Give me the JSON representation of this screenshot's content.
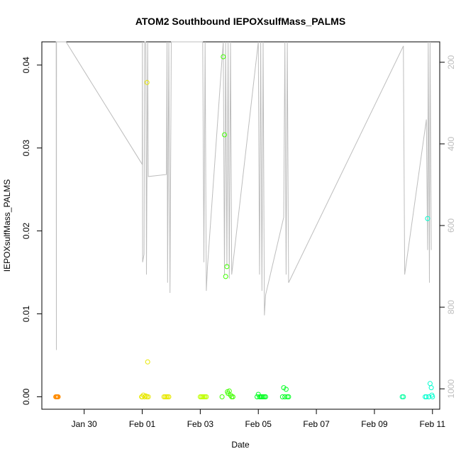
{
  "chart_data": {
    "type": "scatter",
    "title": "ATOM2 Southbound IEPOXsulfMass_PALMS",
    "xlabel": "Date",
    "ylabel": "IEPOXsulfMass_PALMS",
    "x_axis_type": "date",
    "xlim": [
      "2017-01-28T13:00",
      "2017-02-11T06:00"
    ],
    "ylim": [
      -0.0015,
      0.0428
    ],
    "x_ticks": [
      {
        "date": "2017-01-30",
        "label": "Jan 30"
      },
      {
        "date": "2017-02-01",
        "label": "Feb 01"
      },
      {
        "date": "2017-02-03",
        "label": "Feb 03"
      },
      {
        "date": "2017-02-05",
        "label": "Feb 05"
      },
      {
        "date": "2017-02-07",
        "label": "Feb 07"
      },
      {
        "date": "2017-02-09",
        "label": "Feb 09"
      },
      {
        "date": "2017-02-11",
        "label": "Feb 11"
      }
    ],
    "y_ticks": [
      {
        "value": 0.0,
        "label": "0.00"
      },
      {
        "value": 0.01,
        "label": "0.01"
      },
      {
        "value": 0.02,
        "label": "0.02"
      },
      {
        "value": 0.03,
        "label": "0.03"
      },
      {
        "value": 0.04,
        "label": "0.04"
      }
    ],
    "secondary_axis": {
      "position": "right",
      "reversed": true,
      "ylim": [
        1050,
        150
      ],
      "ticks": [
        {
          "value": 200,
          "label": "200"
        },
        {
          "value": 400,
          "label": "400"
        },
        {
          "value": 600,
          "label": "600"
        },
        {
          "value": 800,
          "label": "800"
        },
        {
          "value": 1000,
          "label": "1000"
        }
      ],
      "line_color": "#bdbdbd",
      "line": [
        [
          "2017-01-29T00:30",
          150
        ],
        [
          "2017-01-29T00:50",
          150
        ],
        [
          "2017-01-29T01:00",
          905
        ],
        [
          "2017-01-29T01:10",
          150
        ],
        [
          "2017-01-29T09:00",
          150
        ],
        [
          "2017-02-01T00:00",
          450
        ],
        [
          "2017-02-01T00:10",
          150
        ],
        [
          "2017-02-01T00:20",
          690
        ],
        [
          "2017-02-01T01:30",
          670
        ],
        [
          "2017-02-01T02:00",
          150
        ],
        [
          "2017-02-01T03:00",
          150
        ],
        [
          "2017-02-01T03:30",
          720
        ],
        [
          "2017-02-01T04:30",
          150
        ],
        [
          "2017-02-01T05:00",
          480
        ],
        [
          "2017-02-01T20:00",
          475
        ],
        [
          "2017-02-01T20:30",
          150
        ],
        [
          "2017-02-01T21:00",
          740
        ],
        [
          "2017-02-01T22:00",
          150
        ],
        [
          "2017-02-01T23:00",
          765
        ],
        [
          "2017-02-02T00:00",
          150
        ],
        [
          "2017-02-03T02:00",
          150
        ],
        [
          "2017-02-03T03:00",
          690
        ],
        [
          "2017-02-03T04:00",
          150
        ],
        [
          "2017-02-03T05:00",
          760
        ],
        [
          "2017-02-03T06:00",
          700
        ],
        [
          "2017-02-03T18:00",
          190
        ],
        [
          "2017-02-03T19:00",
          150
        ],
        [
          "2017-02-03T20:00",
          720
        ],
        [
          "2017-02-03T21:00",
          150
        ],
        [
          "2017-02-03T22:00",
          700
        ],
        [
          "2017-02-03T23:00",
          150
        ],
        [
          "2017-02-04T00:00",
          730
        ],
        [
          "2017-02-04T01:00",
          150
        ],
        [
          "2017-02-04T02:00",
          720
        ],
        [
          "2017-02-05T00:00",
          150
        ],
        [
          "2017-02-05T01:00",
          720
        ],
        [
          "2017-02-05T02:00",
          150
        ],
        [
          "2017-02-05T03:00",
          760
        ],
        [
          "2017-02-05T04:00",
          150
        ],
        [
          "2017-02-05T05:00",
          820
        ],
        [
          "2017-02-05T06:00",
          770
        ],
        [
          "2017-02-05T21:00",
          580
        ],
        [
          "2017-02-05T22:00",
          150
        ],
        [
          "2017-02-05T23:00",
          720
        ],
        [
          "2017-02-06T00:00",
          150
        ],
        [
          "2017-02-06T01:00",
          740
        ],
        [
          "2017-02-10T00:00",
          160
        ],
        [
          "2017-02-10T00:00",
          180
        ],
        [
          "2017-02-10T01:00",
          720
        ],
        [
          "2017-02-10T19:00",
          340
        ],
        [
          "2017-02-10T20:00",
          660
        ],
        [
          "2017-02-10T20:30",
          150
        ],
        [
          "2017-02-10T21:30",
          740
        ],
        [
          "2017-02-10T22:00",
          150
        ],
        [
          "2017-02-10T23:00",
          660
        ]
      ]
    },
    "point_colors": {
      "orange": "#ff8c00",
      "yellow": "#e8e800",
      "yellow_green": "#bfff00",
      "green": "#40ff00",
      "bright_green": "#00ff20",
      "cyan_green": "#00ffa0",
      "cyan": "#00ffd0"
    },
    "series": [
      {
        "color": "orange",
        "points": [
          [
            "2017-01-29T00:30",
            0.0
          ],
          [
            "2017-01-29T01:00",
            0.0
          ],
          [
            "2017-01-29T01:30",
            0.0
          ],
          [
            "2017-01-29T02:00",
            0.0
          ],
          [
            "2017-01-29T02:30",
            0.0
          ]
        ]
      },
      {
        "color": "yellow",
        "points": [
          [
            "2017-01-31T23:30",
            0.0
          ],
          [
            "2017-02-01T00:00",
            0.0
          ],
          [
            "2017-02-01T01:00",
            0.0002
          ],
          [
            "2017-02-01T02:00",
            0.0
          ],
          [
            "2017-02-01T03:00",
            0.0001
          ],
          [
            "2017-02-01T04:00",
            0.0
          ],
          [
            "2017-02-01T04:00",
            0.0379
          ],
          [
            "2017-02-01T04:30",
            0.0042
          ],
          [
            "2017-02-01T05:00",
            0.0
          ]
        ]
      },
      {
        "color": "yellow",
        "points": [
          [
            "2017-02-01T18:00",
            0.0
          ],
          [
            "2017-02-01T19:00",
            0.0
          ],
          [
            "2017-02-01T20:00",
            0.0
          ],
          [
            "2017-02-01T21:00",
            0.0
          ],
          [
            "2017-02-01T22:00",
            0.0
          ]
        ]
      },
      {
        "color": "yellow_green",
        "points": [
          [
            "2017-02-03T00:00",
            0.0
          ],
          [
            "2017-02-03T01:00",
            0.0
          ],
          [
            "2017-02-03T02:00",
            0.0
          ],
          [
            "2017-02-03T03:00",
            0.0
          ],
          [
            "2017-02-03T04:00",
            0.0
          ],
          [
            "2017-02-03T05:00",
            0.0
          ]
        ]
      },
      {
        "color": "green",
        "points": [
          [
            "2017-02-03T18:00",
            0.0
          ],
          [
            "2017-02-03T19:00",
            0.041
          ],
          [
            "2017-02-03T20:00",
            0.0316
          ],
          [
            "2017-02-03T21:00",
            0.0145
          ],
          [
            "2017-02-03T22:00",
            0.0157
          ],
          [
            "2017-02-03T22:30",
            0.0006
          ],
          [
            "2017-02-03T23:00",
            0.0004
          ],
          [
            "2017-02-04T00:00",
            0.0007
          ],
          [
            "2017-02-04T01:00",
            0.0002
          ],
          [
            "2017-02-04T02:00",
            0.0
          ],
          [
            "2017-02-04T03:00",
            0.0
          ]
        ]
      },
      {
        "color": "bright_green",
        "points": [
          [
            "2017-02-04T23:00",
            0.0
          ],
          [
            "2017-02-05T00:00",
            0.0003
          ],
          [
            "2017-02-05T01:00",
            0.0
          ],
          [
            "2017-02-05T02:00",
            0.0
          ],
          [
            "2017-02-05T03:00",
            0.0
          ],
          [
            "2017-02-05T04:00",
            0.0
          ],
          [
            "2017-02-05T05:00",
            0.0
          ],
          [
            "2017-02-05T06:00",
            0.0
          ]
        ]
      },
      {
        "color": "bright_green",
        "points": [
          [
            "2017-02-05T20:00",
            0.0
          ],
          [
            "2017-02-05T21:00",
            0.0011
          ],
          [
            "2017-02-05T22:00",
            0.0
          ],
          [
            "2017-02-05T23:00",
            0.0009
          ],
          [
            "2017-02-06T00:00",
            0.0
          ],
          [
            "2017-02-06T01:00",
            0.0
          ]
        ]
      },
      {
        "color": "cyan_green",
        "points": [
          [
            "2017-02-09T23:00",
            0.0
          ],
          [
            "2017-02-10T00:00",
            0.0
          ]
        ]
      },
      {
        "color": "cyan",
        "points": [
          [
            "2017-02-10T18:00",
            0.0
          ],
          [
            "2017-02-10T19:00",
            0.0
          ],
          [
            "2017-02-10T20:00",
            0.0215
          ],
          [
            "2017-02-10T21:00",
            0.0
          ],
          [
            "2017-02-10T22:00",
            0.0016
          ],
          [
            "2017-02-10T23:00",
            0.0011
          ],
          [
            "2017-02-10T23:30",
            0.0002
          ],
          [
            "2017-02-11T00:00",
            0.0
          ]
        ]
      }
    ],
    "grid": false,
    "legend": "none"
  }
}
